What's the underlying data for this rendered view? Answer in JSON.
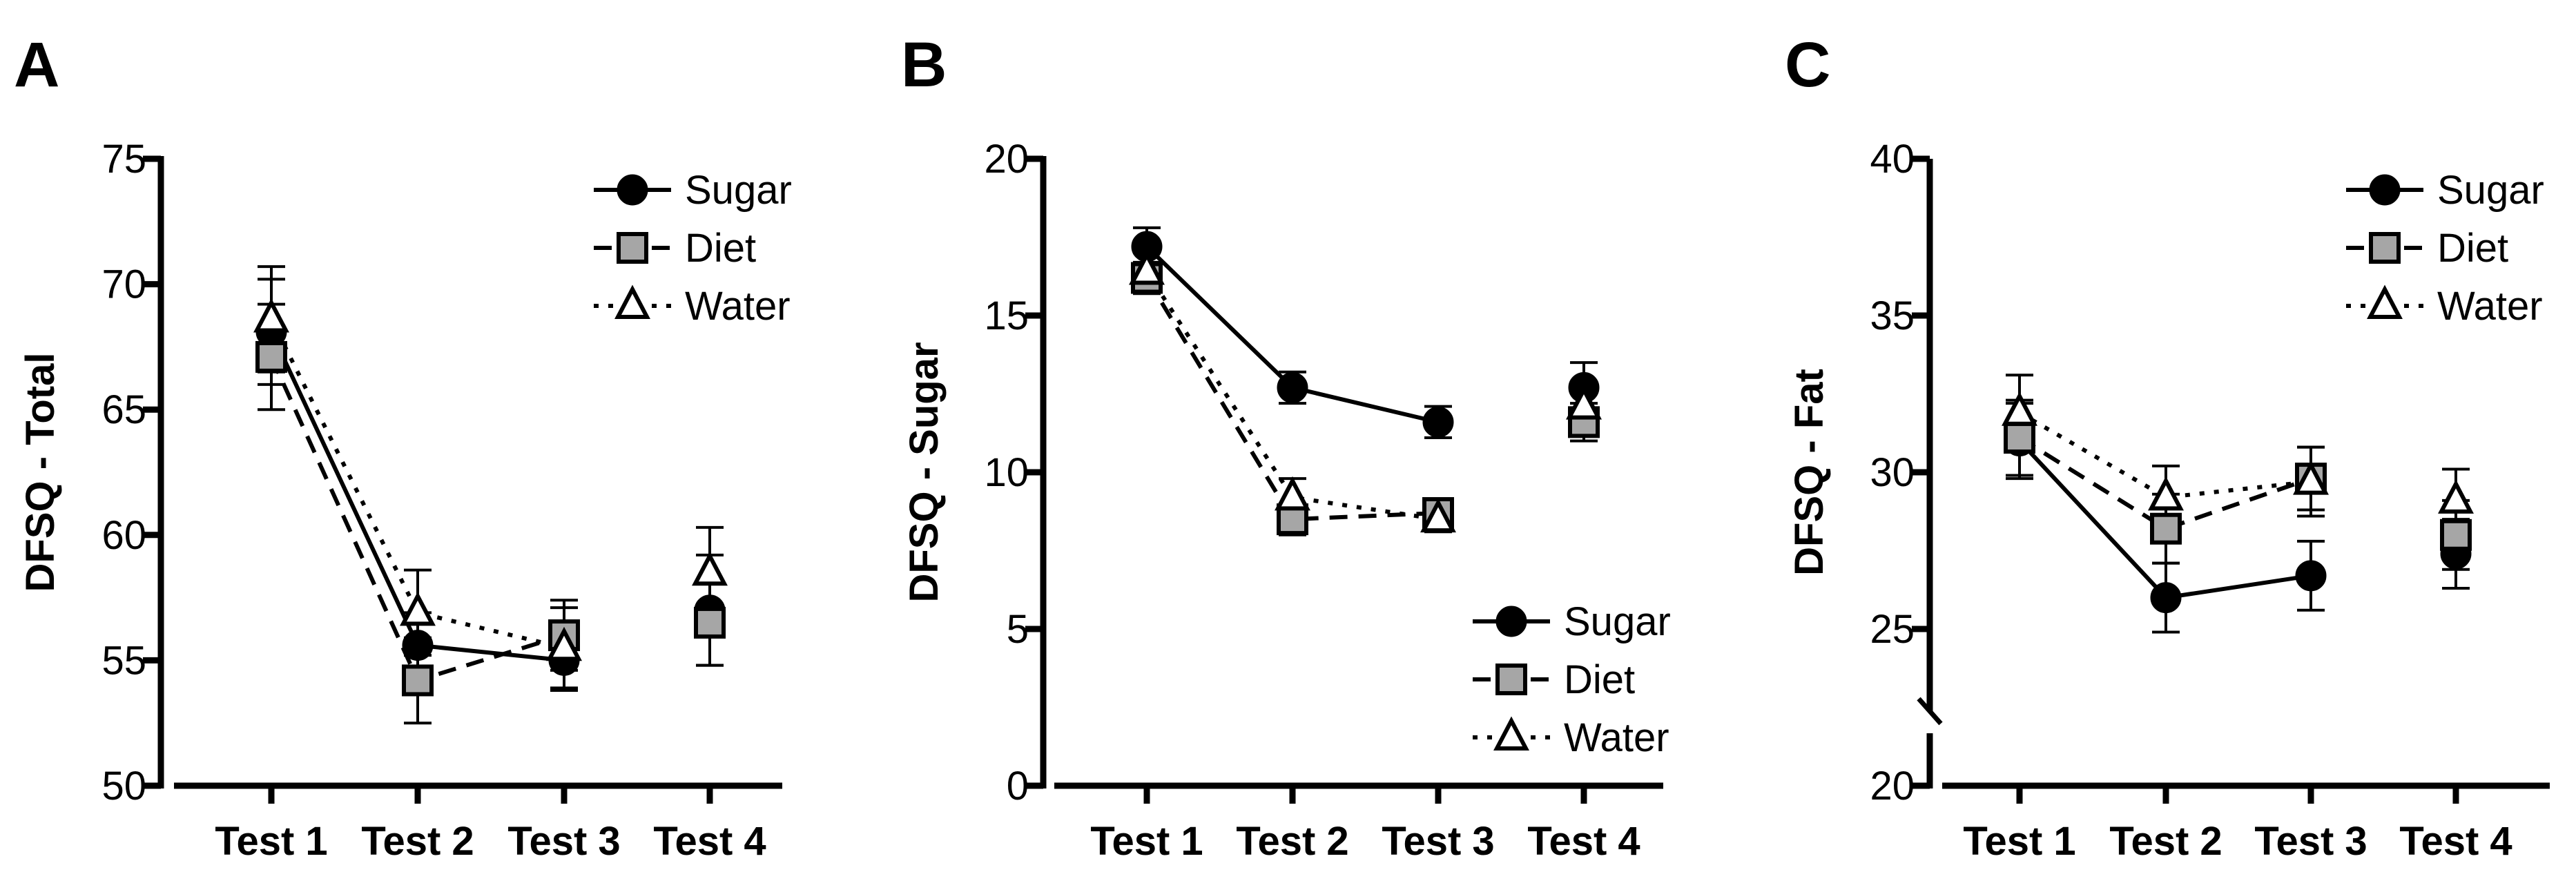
{
  "figure": {
    "panels": [
      "A",
      "B",
      "C"
    ]
  },
  "colors": {
    "axis": "#000000",
    "sugar_fill": "#000000",
    "diet_fill": "#a6a6a6",
    "water_fill": "#ffffff"
  },
  "chart_data": [
    {
      "panel": "A",
      "type": "line",
      "title": "",
      "xlabel": "",
      "ylabel": "DFSQ - Total",
      "categories": [
        "Test 1",
        "Test 2",
        "Test 3",
        "Test 4"
      ],
      "ylim": [
        50,
        75
      ],
      "yticks": [
        50,
        55,
        60,
        65,
        70,
        75
      ],
      "axis_break": false,
      "legend_position": "top-right",
      "series": [
        {
          "name": "Sugar",
          "marker": "circle",
          "line": "solid",
          "values": [
            68.1,
            55.6,
            55.0,
            57.0
          ],
          "errors": [
            2.1,
            1.3,
            1.2,
            2.2
          ]
        },
        {
          "name": "Diet",
          "marker": "square",
          "line": "dashed",
          "values": [
            67.1,
            54.2,
            56.0,
            56.5
          ],
          "errors": [
            2.1,
            1.7,
            1.4,
            1.7
          ]
        },
        {
          "name": "Water",
          "marker": "triangle",
          "line": "dotted",
          "values": [
            68.6,
            56.9,
            55.5,
            58.5
          ],
          "errors": [
            2.1,
            1.7,
            1.6,
            1.8
          ]
        }
      ]
    },
    {
      "panel": "B",
      "type": "line",
      "title": "",
      "xlabel": "",
      "ylabel": "DFSQ - Sugar",
      "categories": [
        "Test 1",
        "Test 2",
        "Test 3",
        "Test 4"
      ],
      "ylim": [
        0,
        20
      ],
      "yticks": [
        0,
        5,
        10,
        15,
        20
      ],
      "axis_break": false,
      "legend_position": "bottom-right",
      "series": [
        {
          "name": "Sugar",
          "marker": "circle",
          "line": "solid",
          "values": [
            17.2,
            12.7,
            11.6,
            12.7
          ],
          "errors": [
            0.6,
            0.5,
            0.5,
            0.8
          ]
        },
        {
          "name": "Diet",
          "marker": "square",
          "line": "dashed",
          "values": [
            16.2,
            8.5,
            8.7,
            11.6
          ],
          "errors": [
            0.5,
            0.5,
            0.4,
            0.6
          ]
        },
        {
          "name": "Water",
          "marker": "triangle",
          "line": "dotted",
          "values": [
            16.4,
            9.2,
            8.5,
            12.1
          ],
          "errors": [
            0.6,
            0.6,
            0.4,
            0.7
          ]
        }
      ]
    },
    {
      "panel": "C",
      "type": "line",
      "title": "",
      "xlabel": "",
      "ylabel": "DFSQ - Fat",
      "categories": [
        "Test 1",
        "Test 2",
        "Test 3",
        "Test 4"
      ],
      "ylim": [
        20,
        40
      ],
      "yticks": [
        20,
        25,
        30,
        35,
        40
      ],
      "axis_break": true,
      "legend_position": "top-right",
      "series": [
        {
          "name": "Sugar",
          "marker": "circle",
          "line": "solid",
          "values": [
            31.0,
            26.0,
            26.7,
            27.4
          ],
          "errors": [
            1.2,
            1.1,
            1.1,
            1.1
          ]
        },
        {
          "name": "Diet",
          "marker": "square",
          "line": "dashed",
          "values": [
            31.1,
            28.2,
            29.8,
            28.0
          ],
          "errors": [
            1.2,
            1.1,
            1.0,
            1.1
          ]
        },
        {
          "name": "Water",
          "marker": "triangle",
          "line": "dotted",
          "values": [
            31.9,
            29.2,
            29.7,
            29.1
          ],
          "errors": [
            1.2,
            1.0,
            1.1,
            1.0
          ]
        }
      ]
    }
  ]
}
